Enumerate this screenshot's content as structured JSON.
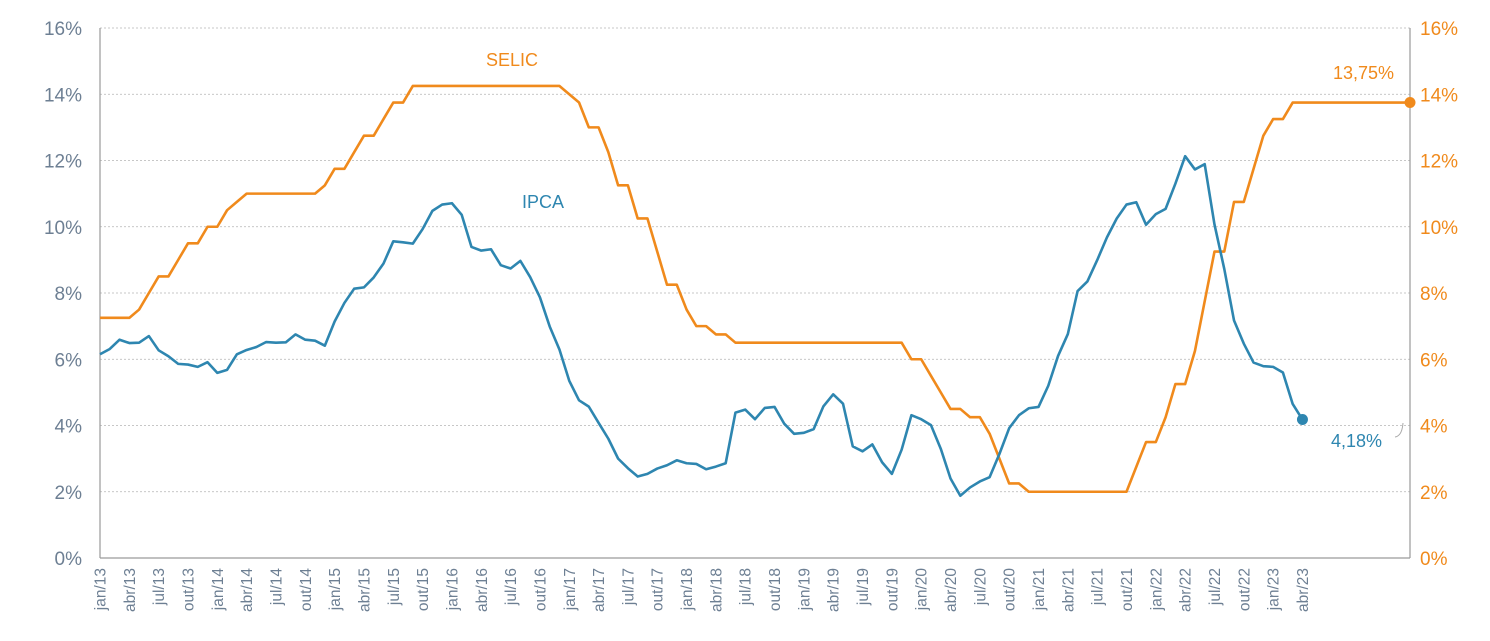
{
  "chart_data": {
    "type": "line",
    "y_ticks": [
      "0%",
      "2%",
      "4%",
      "6%",
      "8%",
      "10%",
      "12%",
      "14%",
      "16%"
    ],
    "ylim": [
      0,
      16
    ],
    "x_tick_labels": [
      "jan/13",
      "abr/13",
      "jul/13",
      "out/13",
      "jan/14",
      "abr/14",
      "jul/14",
      "out/14",
      "jan/15",
      "abr/15",
      "jul/15",
      "out/15",
      "jan/16",
      "abr/16",
      "jul/16",
      "out/16",
      "jan/17",
      "abr/17",
      "jul/17",
      "out/17",
      "jan/18",
      "abr/18",
      "jul/18",
      "out/18",
      "jan/19",
      "abr/19",
      "jul/19",
      "out/19",
      "jan/20",
      "abr/20",
      "jul/20",
      "out/20",
      "jan/21",
      "abr/21",
      "jul/21",
      "out/21",
      "jan/22",
      "abr/22",
      "jul/22",
      "out/22",
      "jan/23",
      "abr/23"
    ],
    "x_start": "jan/13",
    "grid": true,
    "colors": {
      "SELIC": "#f08a1c",
      "IPCA": "#2e86b0"
    },
    "series": [
      {
        "name": "SELIC",
        "axis": "right",
        "values": [
          7.25,
          7.25,
          7.25,
          7.25,
          7.5,
          8.0,
          8.5,
          8.5,
          9.0,
          9.5,
          9.5,
          10.0,
          10.0,
          10.5,
          10.75,
          11.0,
          11.0,
          11.0,
          11.0,
          11.0,
          11.0,
          11.0,
          11.0,
          11.25,
          11.75,
          11.75,
          12.25,
          12.75,
          12.75,
          13.25,
          13.75,
          13.75,
          14.25,
          14.25,
          14.25,
          14.25,
          14.25,
          14.25,
          14.25,
          14.25,
          14.25,
          14.25,
          14.25,
          14.25,
          14.25,
          14.25,
          14.25,
          14.25,
          14.0,
          13.75,
          13.0,
          13.0,
          12.25,
          11.25,
          11.25,
          10.25,
          10.25,
          9.25,
          8.25,
          8.25,
          7.5,
          7.0,
          7.0,
          6.75,
          6.75,
          6.5,
          6.5,
          6.5,
          6.5,
          6.5,
          6.5,
          6.5,
          6.5,
          6.5,
          6.5,
          6.5,
          6.5,
          6.5,
          6.5,
          6.5,
          6.5,
          6.5,
          6.5,
          6.0,
          6.0,
          5.5,
          5.0,
          4.5,
          4.5,
          4.25,
          4.25,
          3.75,
          3.0,
          2.25,
          2.25,
          2.0,
          2.0,
          2.0,
          2.0,
          2.0,
          2.0,
          2.0,
          2.0,
          2.0,
          2.0,
          2.0,
          2.75,
          3.5,
          3.5,
          4.25,
          5.25,
          5.25,
          6.25,
          7.75,
          9.25,
          9.25,
          10.75,
          10.75,
          11.75,
          12.75,
          13.25,
          13.25,
          13.75,
          13.75,
          13.75,
          13.75,
          13.75,
          13.75,
          13.75,
          13.75,
          13.75,
          13.75,
          13.75,
          13.75,
          13.75
        ]
      },
      {
        "name": "IPCA",
        "axis": "left",
        "values": [
          6.15,
          6.31,
          6.59,
          6.49,
          6.5,
          6.7,
          6.27,
          6.09,
          5.86,
          5.84,
          5.77,
          5.91,
          5.59,
          5.68,
          6.15,
          6.28,
          6.37,
          6.52,
          6.5,
          6.51,
          6.75,
          6.59,
          6.56,
          6.41,
          7.14,
          7.7,
          8.13,
          8.17,
          8.47,
          8.89,
          9.56,
          9.53,
          9.49,
          9.93,
          10.48,
          10.67,
          10.71,
          10.36,
          9.39,
          9.28,
          9.32,
          8.84,
          8.74,
          8.97,
          8.48,
          7.87,
          6.99,
          6.29,
          5.35,
          4.76,
          4.57,
          4.08,
          3.6,
          3.0,
          2.71,
          2.46,
          2.54,
          2.7,
          2.8,
          2.95,
          2.86,
          2.84,
          2.68,
          2.76,
          2.86,
          4.39,
          4.48,
          4.19,
          4.53,
          4.56,
          4.05,
          3.75,
          3.78,
          3.89,
          4.58,
          4.94,
          4.66,
          3.37,
          3.22,
          3.43,
          2.89,
          2.54,
          3.27,
          4.31,
          4.19,
          4.01,
          3.3,
          2.4,
          1.88,
          2.13,
          2.31,
          2.44,
          3.14,
          3.92,
          4.31,
          4.52,
          4.56,
          5.2,
          6.1,
          6.76,
          8.06,
          8.35,
          8.99,
          9.68,
          10.25,
          10.67,
          10.74,
          10.06,
          10.38,
          10.54,
          11.3,
          12.13,
          11.73,
          11.89,
          10.07,
          8.73,
          7.17,
          6.47,
          5.9,
          5.79,
          5.77,
          5.6,
          4.65,
          4.18
        ]
      }
    ],
    "annotations": {
      "selic_label": "SELIC",
      "ipca_label": "IPCA",
      "selic_last": "13,75%",
      "ipca_last": "4,18%"
    }
  }
}
